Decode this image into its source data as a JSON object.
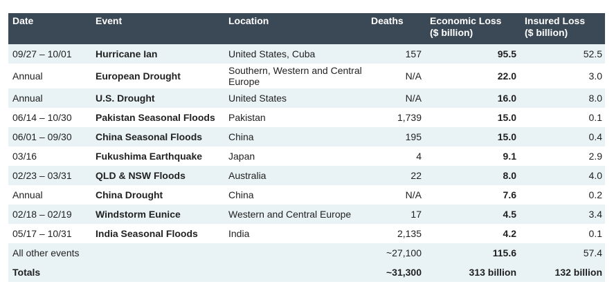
{
  "headers": {
    "date": "Date",
    "event": "Event",
    "location": "Location",
    "deaths": "Deaths",
    "economic_loss": "Economic Loss",
    "economic_loss_unit": "($ billion)",
    "insured_loss": "Insured Loss",
    "insured_loss_unit": "($ billion)"
  },
  "rows": [
    {
      "date": "09/27 – 10/01",
      "event": "Hurricane Ian",
      "location": "United States, Cuba",
      "deaths": "157",
      "economic": "95.5",
      "insured": "52.5"
    },
    {
      "date": "Annual",
      "event": "European Drought",
      "location": "Southern, Western and Central Europe",
      "deaths": "N/A",
      "economic": "22.0",
      "insured": "3.0"
    },
    {
      "date": "Annual",
      "event": "U.S. Drought",
      "location": "United States",
      "deaths": "N/A",
      "economic": "16.0",
      "insured": "8.0"
    },
    {
      "date": "06/14 – 10/30",
      "event": "Pakistan Seasonal Floods",
      "location": "Pakistan",
      "deaths": "1,739",
      "economic": "15.0",
      "insured": "0.1"
    },
    {
      "date": "06/01 – 09/30",
      "event": "China Seasonal Floods",
      "location": "China",
      "deaths": "195",
      "economic": "15.0",
      "insured": "0.4"
    },
    {
      "date": "03/16",
      "event": "Fukushima Earthquake",
      "location": "Japan",
      "deaths": "4",
      "economic": "9.1",
      "insured": "2.9"
    },
    {
      "date": "02/23 – 03/31",
      "event": "QLD & NSW Floods",
      "location": "Australia",
      "deaths": "22",
      "economic": "8.0",
      "insured": "4.0"
    },
    {
      "date": "Annual",
      "event": "China Drought",
      "location": "China",
      "deaths": "N/A",
      "economic": "7.6",
      "insured": "0.2"
    },
    {
      "date": "02/18 – 02/19",
      "event": "Windstorm Eunice",
      "location": "Western and Central Europe",
      "deaths": "17",
      "economic": "4.5",
      "insured": "3.4"
    },
    {
      "date": "05/17 – 10/31",
      "event": "India Seasonal Floods",
      "location": "India",
      "deaths": "2,135",
      "economic": "4.2",
      "insured": "0.1"
    }
  ],
  "other": {
    "label": "All other events",
    "deaths": "~27,100",
    "economic": "115.6",
    "insured": "57.4"
  },
  "totals": {
    "label": "Totals",
    "deaths": "~31,300",
    "economic": "313 billion",
    "insured": "132 billion"
  },
  "colors": {
    "header_bg": "#3b4856",
    "stripe_bg": "#e9f3f5"
  }
}
